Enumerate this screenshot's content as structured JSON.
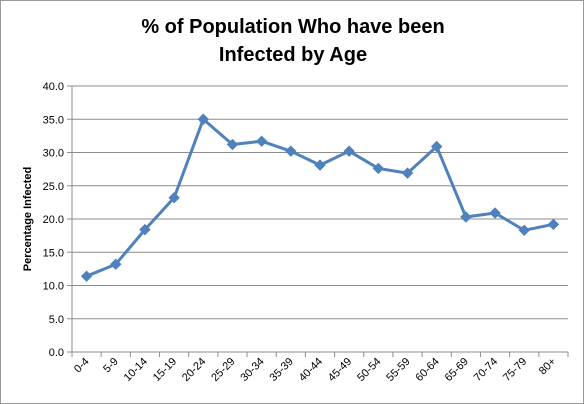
{
  "chart_data": {
    "type": "line",
    "title_line1": "% of Population Who have been",
    "title_line2": "Infected by Age",
    "ylabel": "Percentage Infected",
    "xlabel": "",
    "ylim": [
      0,
      40
    ],
    "yticks": [
      "0.0",
      "5.0",
      "10.0",
      "15.0",
      "20.0",
      "25.0",
      "30.0",
      "35.0",
      "40.0"
    ],
    "grid": "horizontal",
    "categories": [
      "0-4",
      "5-9",
      "10-14",
      "15-19",
      "20-24",
      "25-29",
      "30-34",
      "35-39",
      "40-44",
      "45-49",
      "50-54",
      "55-59",
      "60-64",
      "65-69",
      "70-74",
      "75-79",
      "80+"
    ],
    "series": [
      {
        "values": [
          11.4,
          13.2,
          18.4,
          23.2,
          35.0,
          31.2,
          31.7,
          30.2,
          28.1,
          30.2,
          27.6,
          26.9,
          30.9,
          20.3,
          20.9,
          18.3,
          19.2
        ],
        "color": "#4f81bd"
      }
    ]
  }
}
